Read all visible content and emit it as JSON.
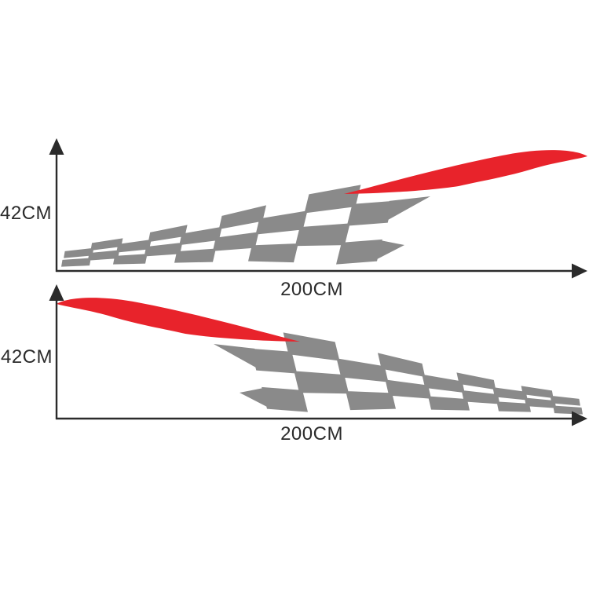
{
  "colors": {
    "flag_gray": "#8a8a8a",
    "accent_red": "#e8232b",
    "axis_dark": "#2b2b2b",
    "label_dark": "#2b2b2b",
    "background": "#ffffff"
  },
  "top_diagram": {
    "height_label": "42CM",
    "width_label": "200CM"
  },
  "bottom_diagram": {
    "height_label": "42CM",
    "width_label": "200CM"
  }
}
